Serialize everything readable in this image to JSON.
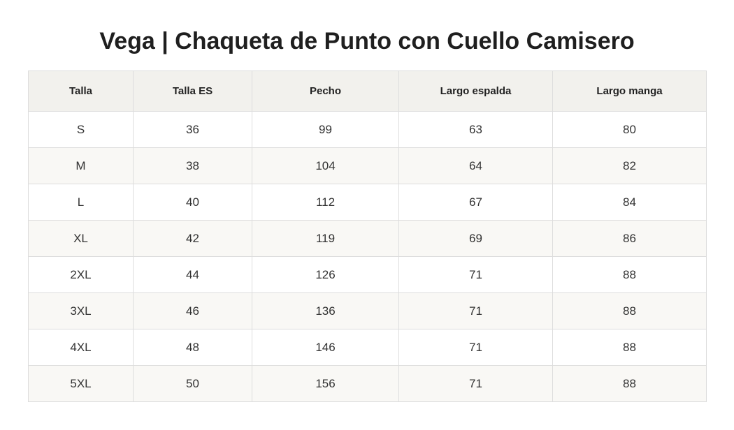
{
  "title": "Vega | Chaqueta de Punto con Cuello Camisero",
  "table": {
    "headers": [
      "Talla",
      "Talla ES",
      "Pecho",
      "Largo espalda",
      "Largo manga"
    ],
    "rows": [
      [
        "S",
        "36",
        "99",
        "63",
        "80"
      ],
      [
        "M",
        "38",
        "104",
        "64",
        "82"
      ],
      [
        "L",
        "40",
        "112",
        "67",
        "84"
      ],
      [
        "XL",
        "42",
        "119",
        "69",
        "86"
      ],
      [
        "2XL",
        "44",
        "126",
        "71",
        "88"
      ],
      [
        "3XL",
        "46",
        "136",
        "71",
        "88"
      ],
      [
        "4XL",
        "48",
        "146",
        "71",
        "88"
      ],
      [
        "5XL",
        "50",
        "156",
        "71",
        "88"
      ]
    ]
  }
}
